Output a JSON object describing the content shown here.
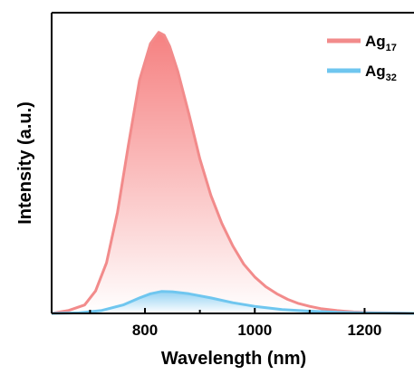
{
  "chart_data": {
    "type": "line",
    "xlabel": "Wavelength (nm)",
    "ylabel": "Intensity (a.u.)",
    "xlim": [
      630,
      1290
    ],
    "ylim": [
      0,
      1.07
    ],
    "x_ticks": [
      800,
      1000,
      1200
    ],
    "y_ticks_shown": false,
    "grid": false,
    "legend_position": "top-right",
    "series": [
      {
        "name": "Ag17",
        "name_base": "Ag",
        "name_sub": "17",
        "color": "#f28b8b",
        "fill_top": "#f57a7a",
        "fill_bottom": "#ffffff",
        "x": [
          630,
          660,
          690,
          710,
          730,
          750,
          770,
          790,
          810,
          825,
          835,
          845,
          860,
          880,
          900,
          920,
          940,
          960,
          980,
          1000,
          1020,
          1040,
          1060,
          1080,
          1100,
          1120,
          1150,
          1180,
          1210,
          1240,
          1290
        ],
        "y": [
          0.0,
          0.01,
          0.03,
          0.08,
          0.18,
          0.36,
          0.6,
          0.83,
          0.96,
          1.0,
          0.99,
          0.95,
          0.86,
          0.71,
          0.55,
          0.42,
          0.32,
          0.24,
          0.175,
          0.13,
          0.095,
          0.07,
          0.05,
          0.035,
          0.025,
          0.017,
          0.01,
          0.005,
          0.003,
          0.002,
          0.0
        ]
      },
      {
        "name": "Ag32",
        "name_base": "Ag",
        "name_sub": "32",
        "color": "#6fc6ef",
        "fill_top": "#8fd0f2",
        "fill_bottom": "#ffffff",
        "x": [
          630,
          680,
          720,
          760,
          790,
          810,
          830,
          850,
          880,
          920,
          960,
          1000,
          1050,
          1100,
          1150,
          1200,
          1290
        ],
        "y": [
          0.0,
          0.002,
          0.01,
          0.03,
          0.055,
          0.07,
          0.078,
          0.077,
          0.07,
          0.055,
          0.038,
          0.025,
          0.014,
          0.008,
          0.004,
          0.002,
          0.0
        ]
      }
    ]
  }
}
